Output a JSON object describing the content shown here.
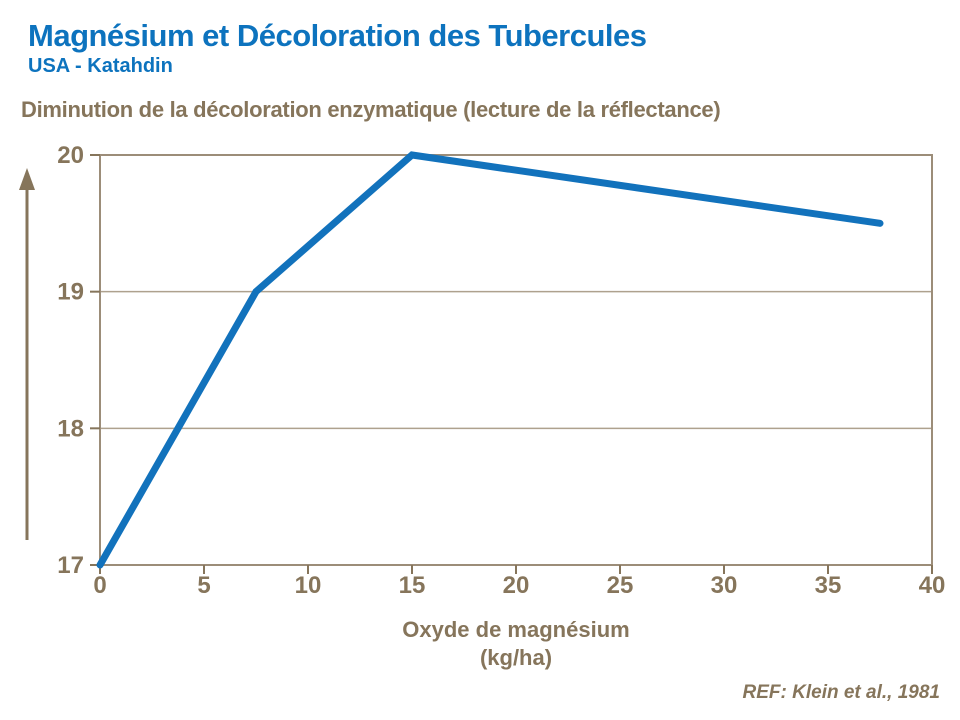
{
  "header": {
    "title": "Magnésium et Décoloration des Tubercules",
    "subtitle": "USA - Katahdin"
  },
  "chart_heading": "Diminution de la décoloration enzymatique (lecture de la réflectance)",
  "footer": {
    "ref": "REF: Klein et al., 1981"
  },
  "colors": {
    "title_blue": "#0D73BE",
    "line_blue": "#1272BC",
    "text_brown": "#86755B",
    "frame": "#9C8D79",
    "grid": "#AEA18E"
  },
  "chart_data": {
    "type": "line",
    "points": [
      [
        0,
        17
      ],
      [
        7.5,
        19
      ],
      [
        15,
        20
      ],
      [
        37.5,
        19.5
      ]
    ],
    "xticks": [
      0,
      5,
      10,
      15,
      20,
      25,
      30,
      35,
      40
    ],
    "yticks": [
      17,
      18,
      19,
      20
    ],
    "xlim": [
      0,
      40
    ],
    "ylim": [
      17,
      20
    ],
    "xlabel_lines": [
      "Oxyde de magnésium",
      "(kg/ha)"
    ],
    "grid": "horizontal",
    "y_axis_arrow": true,
    "legend": "none"
  }
}
